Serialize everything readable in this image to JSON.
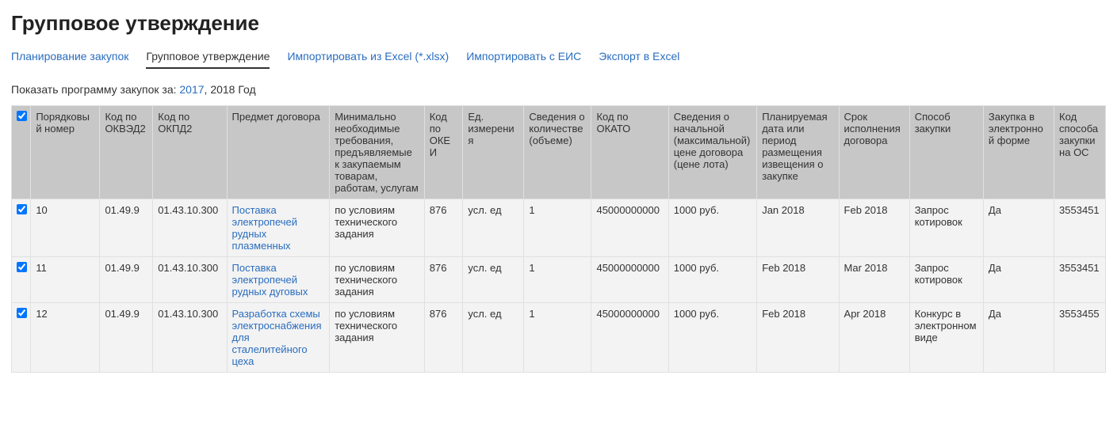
{
  "page": {
    "title": "Групповое утверждение"
  },
  "tabs": [
    {
      "label": "Планирование закупок",
      "active": false
    },
    {
      "label": "Групповое утверждение",
      "active": true
    },
    {
      "label": "Импортировать из Excel (*.xlsx)",
      "active": false
    },
    {
      "label": "Импортировать с ЕИС",
      "active": false
    },
    {
      "label": "Экспорт в Excel",
      "active": false
    }
  ],
  "filter": {
    "prefix": "Показать программу закупок за:",
    "year_link": "2017",
    "separator": ", ",
    "year_current": "2018 Год"
  },
  "columns": [
    "",
    "Порядковый номер",
    "Код по ОКВЭД2",
    "Код по ОКПД2",
    "Предмет договора",
    "Минимально необходимые требования, предъявляемые к закупаемым товарам, работам, услугам",
    "Код по ОКЕИ",
    "Ед. измерения",
    "Сведения о количестве (объеме)",
    "Код по ОКАТО",
    "Сведения о начальной (максимальной) цене договора (цене лота)",
    "Планируемая дата или период размещения извещения о закупке",
    "Срок исполнения договора",
    "Способ закупки",
    "Закупка в электронной форме",
    "Код способа закупки на ОС"
  ],
  "rows": [
    {
      "checked": true,
      "num": "10",
      "okved2": "01.49.9",
      "okpd2": "01.43.10.300",
      "subject": "Поставка электропечей рудных плазменных",
      "requirements": "по условиям технического задания",
      "okei": "876",
      "unit": "усл. ед",
      "qty": "1",
      "okato": "45000000000",
      "price": "1000 руб.",
      "plan_date": "Jan 2018",
      "deadline": "Feb 2018",
      "method": "Запрос котировок",
      "electronic": "Да",
      "os_code": "3553451"
    },
    {
      "checked": true,
      "num": "11",
      "okved2": "01.49.9",
      "okpd2": "01.43.10.300",
      "subject": "Поставка электропечей рудных дуговых",
      "requirements": "по условиям технического задания",
      "okei": "876",
      "unit": "усл. ед",
      "qty": "1",
      "okato": "45000000000",
      "price": "1000 руб.",
      "plan_date": "Feb 2018",
      "deadline": "Mar 2018",
      "method": "Запрос котировок",
      "electronic": "Да",
      "os_code": "3553451"
    },
    {
      "checked": true,
      "num": "12",
      "okved2": "01.49.9",
      "okpd2": "01.43.10.300",
      "subject": "Разработка схемы электроснабжения для сталелитейного цеха",
      "requirements": "по условиям технического задания",
      "okei": "876",
      "unit": "усл. ед",
      "qty": "1",
      "okato": "45000000000",
      "price": "1000 руб.",
      "plan_date": "Feb 2018",
      "deadline": "Apr 2018",
      "method": "Конкурс в электронном виде",
      "electronic": "Да",
      "os_code": "3553455"
    }
  ],
  "col_widths": [
    "24px",
    "86px",
    "66px",
    "92px",
    "128px",
    "118px",
    "48px",
    "76px",
    "84px",
    "96px",
    "110px",
    "102px",
    "88px",
    "92px",
    "88px",
    "64px"
  ]
}
